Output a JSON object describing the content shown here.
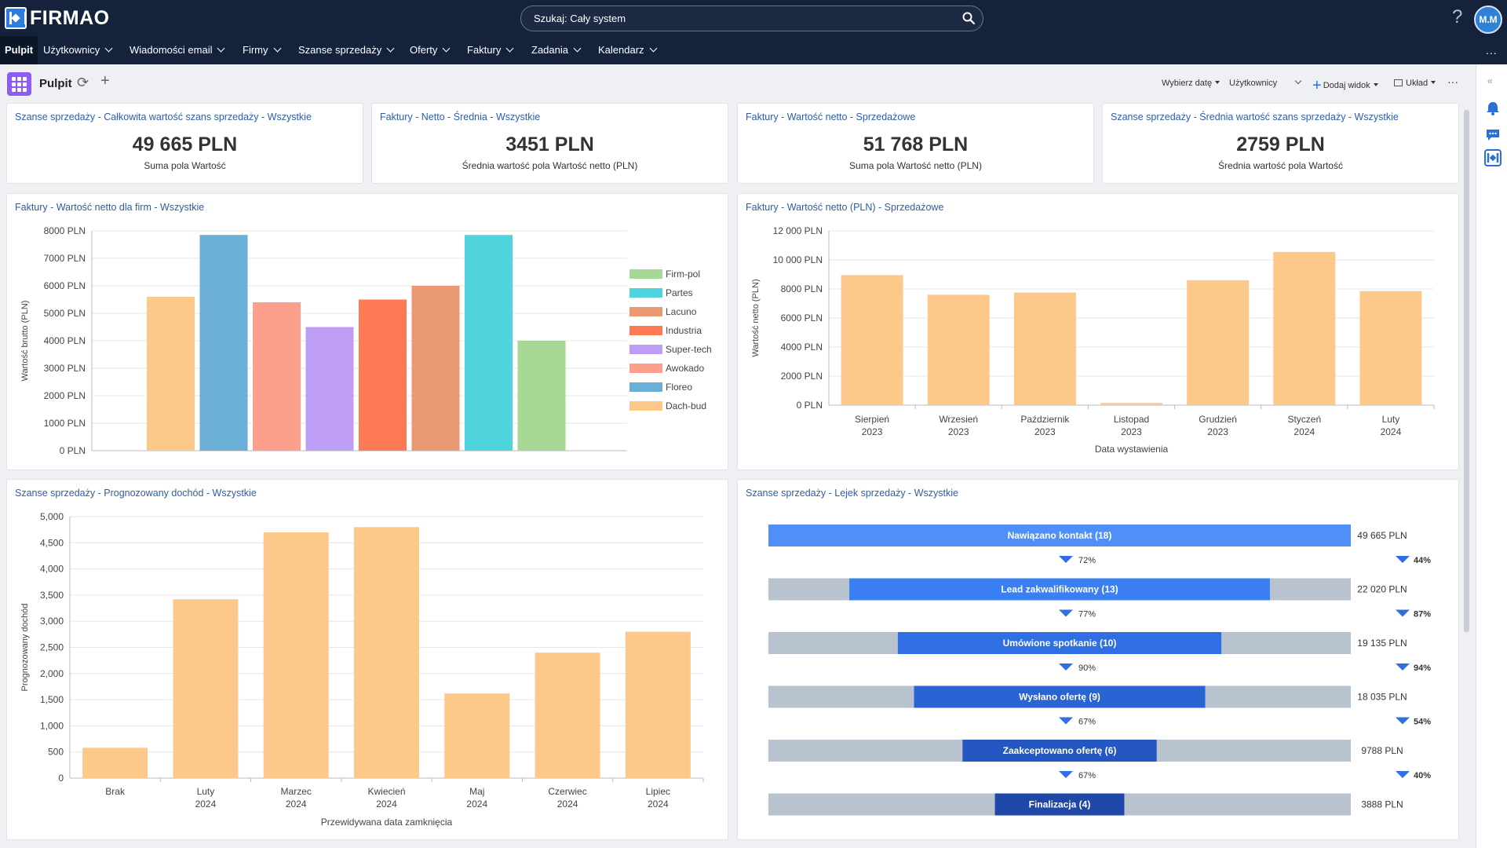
{
  "app": {
    "logo": "FIRMAO"
  },
  "search": {
    "placeholder": "Szukaj: Cały system"
  },
  "header": {
    "help": "?",
    "avatar": "M.M"
  },
  "nav": {
    "items": [
      "Pulpit",
      "Użytkownicy",
      "Wiadomości email",
      "Firmy",
      "Szanse sprzedaży",
      "Oferty",
      "Faktury",
      "Zadania",
      "Kalendarz"
    ],
    "more": "..."
  },
  "toolbar": {
    "title": "Pulpit",
    "date_label": "Wybierz datę",
    "users_label": "Użytkownicy",
    "add_view_label": "Dodaj widok",
    "layout_label": "Układ",
    "more": "···"
  },
  "kpis": [
    {
      "title": "Szanse sprzedaży - Całkowita wartość szans sprzedaży - Wszystkie",
      "value": "49 665 PLN",
      "sub": "Suma pola Wartość"
    },
    {
      "title": "Faktury - Netto - Średnia - Wszystkie",
      "value": "3451 PLN",
      "sub": "Średnia wartość pola Wartość netto (PLN)"
    },
    {
      "title": "Faktury - Wartość netto - Sprzedażowe",
      "value": "51 768 PLN",
      "sub": "Suma pola Wartość netto (PLN)"
    },
    {
      "title": "Szanse sprzedaży - Średnia wartość szans sprzedaży - Wszystkie",
      "value": "2759 PLN",
      "sub": "Średnia wartość pola Wartość"
    }
  ],
  "chart_data": [
    {
      "type": "bar",
      "title": "Faktury - Wartość netto dla firm - Wszystkie",
      "ylabel": "Wartość brutto (PLN)",
      "xlabel": "",
      "ylim": [
        0,
        8000
      ],
      "yticks": [
        "0 PLN",
        "1000 PLN",
        "2000 PLN",
        "3000 PLN",
        "4000 PLN",
        "5000 PLN",
        "6000 PLN",
        "7000 PLN",
        "8000 PLN"
      ],
      "legend_position": "right",
      "bars": [
        {
          "name": "Dach-bud",
          "value": 5600,
          "color": "#fdc98a"
        },
        {
          "name": "Floreo",
          "value": 7850,
          "color": "#6baed6"
        },
        {
          "name": "Awokado",
          "value": 5400,
          "color": "#fc9f8c"
        },
        {
          "name": "Super-tech",
          "value": 4500,
          "color": "#bd9df5"
        },
        {
          "name": "Industria",
          "value": 5500,
          "color": "#fd7a55"
        },
        {
          "name": "Lacuno",
          "value": 6000,
          "color": "#ea9a72"
        },
        {
          "name": "Partes",
          "value": 7850,
          "color": "#4fd3dc"
        },
        {
          "name": "Firm-pol",
          "value": 4000,
          "color": "#a6d996"
        }
      ],
      "legend": [
        "Firm-pol",
        "Partes",
        "Lacuno",
        "Industria",
        "Super-tech",
        "Awokado",
        "Floreo",
        "Dach-bud"
      ]
    },
    {
      "type": "bar",
      "title": "Faktury - Wartość netto (PLN) - Sprzedażowe",
      "ylabel": "Wartość netto (PLN)",
      "xlabel": "Data wystawienia",
      "ylim": [
        0,
        12000
      ],
      "yticks": [
        "0 PLN",
        "2000 PLN",
        "4000 PLN",
        "6000 PLN",
        "8000 PLN",
        "10 000 PLN",
        "12 000 PLN"
      ],
      "color": "#fdc98a",
      "categories": [
        [
          "Sierpień",
          "2023"
        ],
        [
          "Wrzesień",
          "2023"
        ],
        [
          "Październik",
          "2023"
        ],
        [
          "Listopad",
          "2023"
        ],
        [
          "Grudzień",
          "2023"
        ],
        [
          "Styczeń",
          "2024"
        ],
        [
          "Luty",
          "2024"
        ]
      ],
      "values": [
        8950,
        7600,
        7750,
        150,
        8600,
        10550,
        7850
      ]
    },
    {
      "type": "bar",
      "title": "Szanse sprzedaży - Prognozowany dochód - Wszystkie",
      "ylabel": "Prognozowany dochód",
      "xlabel": "Przewidywana data zamknięcia",
      "ylim": [
        0,
        5000
      ],
      "yticks": [
        "0",
        "500",
        "1,000",
        "1,500",
        "2,000",
        "2,500",
        "3,000",
        "3,500",
        "4,000",
        "4,500",
        "5,000"
      ],
      "color": "#fdc98a",
      "categories": [
        [
          "Brak"
        ],
        [
          "Luty",
          "2024"
        ],
        [
          "Marzec",
          "2024"
        ],
        [
          "Kwiecień",
          "2024"
        ],
        [
          "Maj",
          "2024"
        ],
        [
          "Czerwiec",
          "2024"
        ],
        [
          "Lipiec",
          "2024"
        ]
      ],
      "values": [
        580,
        3420,
        4700,
        4800,
        1620,
        2400,
        2800
      ]
    }
  ],
  "funnel": {
    "title": "Szanse sprzedaży - Lejek sprzedaży - Wszystkie",
    "stages": [
      {
        "label": "Nawiązano kontakt (18)",
        "value": "49 665 PLN",
        "count": 18,
        "color": "#4f8ff7"
      },
      {
        "label": "Lead zakwalifikowany (13)",
        "value": "22 020 PLN",
        "count": 13,
        "color": "#3a80f2"
      },
      {
        "label": "Umówione spotkanie (10)",
        "value": "19 135 PLN",
        "count": 10,
        "color": "#2f6fe3"
      },
      {
        "label": "Wysłano ofertę (9)",
        "value": "18 035 PLN",
        "count": 9,
        "color": "#2a63d4"
      },
      {
        "label": "Zaakceptowano ofertę (6)",
        "value": "9788 PLN",
        "count": 6,
        "color": "#2557c2"
      },
      {
        "label": "Finalizacja (4)",
        "value": "3888 PLN",
        "count": 4,
        "color": "#1f47a8"
      }
    ],
    "conversions": [
      {
        "left": "72%",
        "right": "44%"
      },
      {
        "left": "77%",
        "right": "87%"
      },
      {
        "left": "90%",
        "right": "94%"
      },
      {
        "left": "67%",
        "right": "54%"
      },
      {
        "left": "67%",
        "right": "40%"
      }
    ]
  }
}
